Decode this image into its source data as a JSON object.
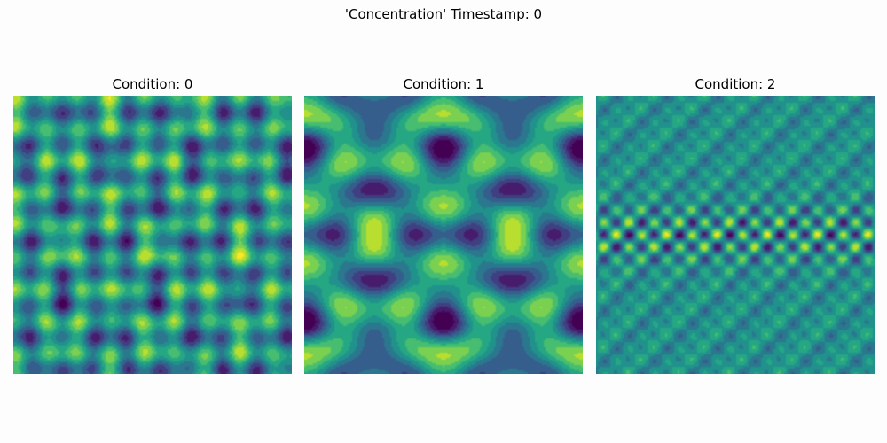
{
  "figure": {
    "suptitle": "'Concentration' Timestamp: 0"
  },
  "chart_data": [
    {
      "type": "heatmap",
      "title": "Condition: 0",
      "colormap": "viridis",
      "pattern": "diagonal lattice",
      "axes_visible": false
    },
    {
      "type": "heatmap",
      "title": "Condition: 1",
      "colormap": "viridis",
      "pattern": "hexagonal spots",
      "axes_visible": false
    },
    {
      "type": "heatmap",
      "title": "Condition: 2",
      "colormap": "viridis",
      "pattern": "fine checkerboard",
      "axes_visible": false
    }
  ],
  "colors": {
    "background": "#fdfdfd",
    "colormap_low": "#440154",
    "colormap_mid": "#21918c",
    "colormap_high": "#fde725"
  }
}
